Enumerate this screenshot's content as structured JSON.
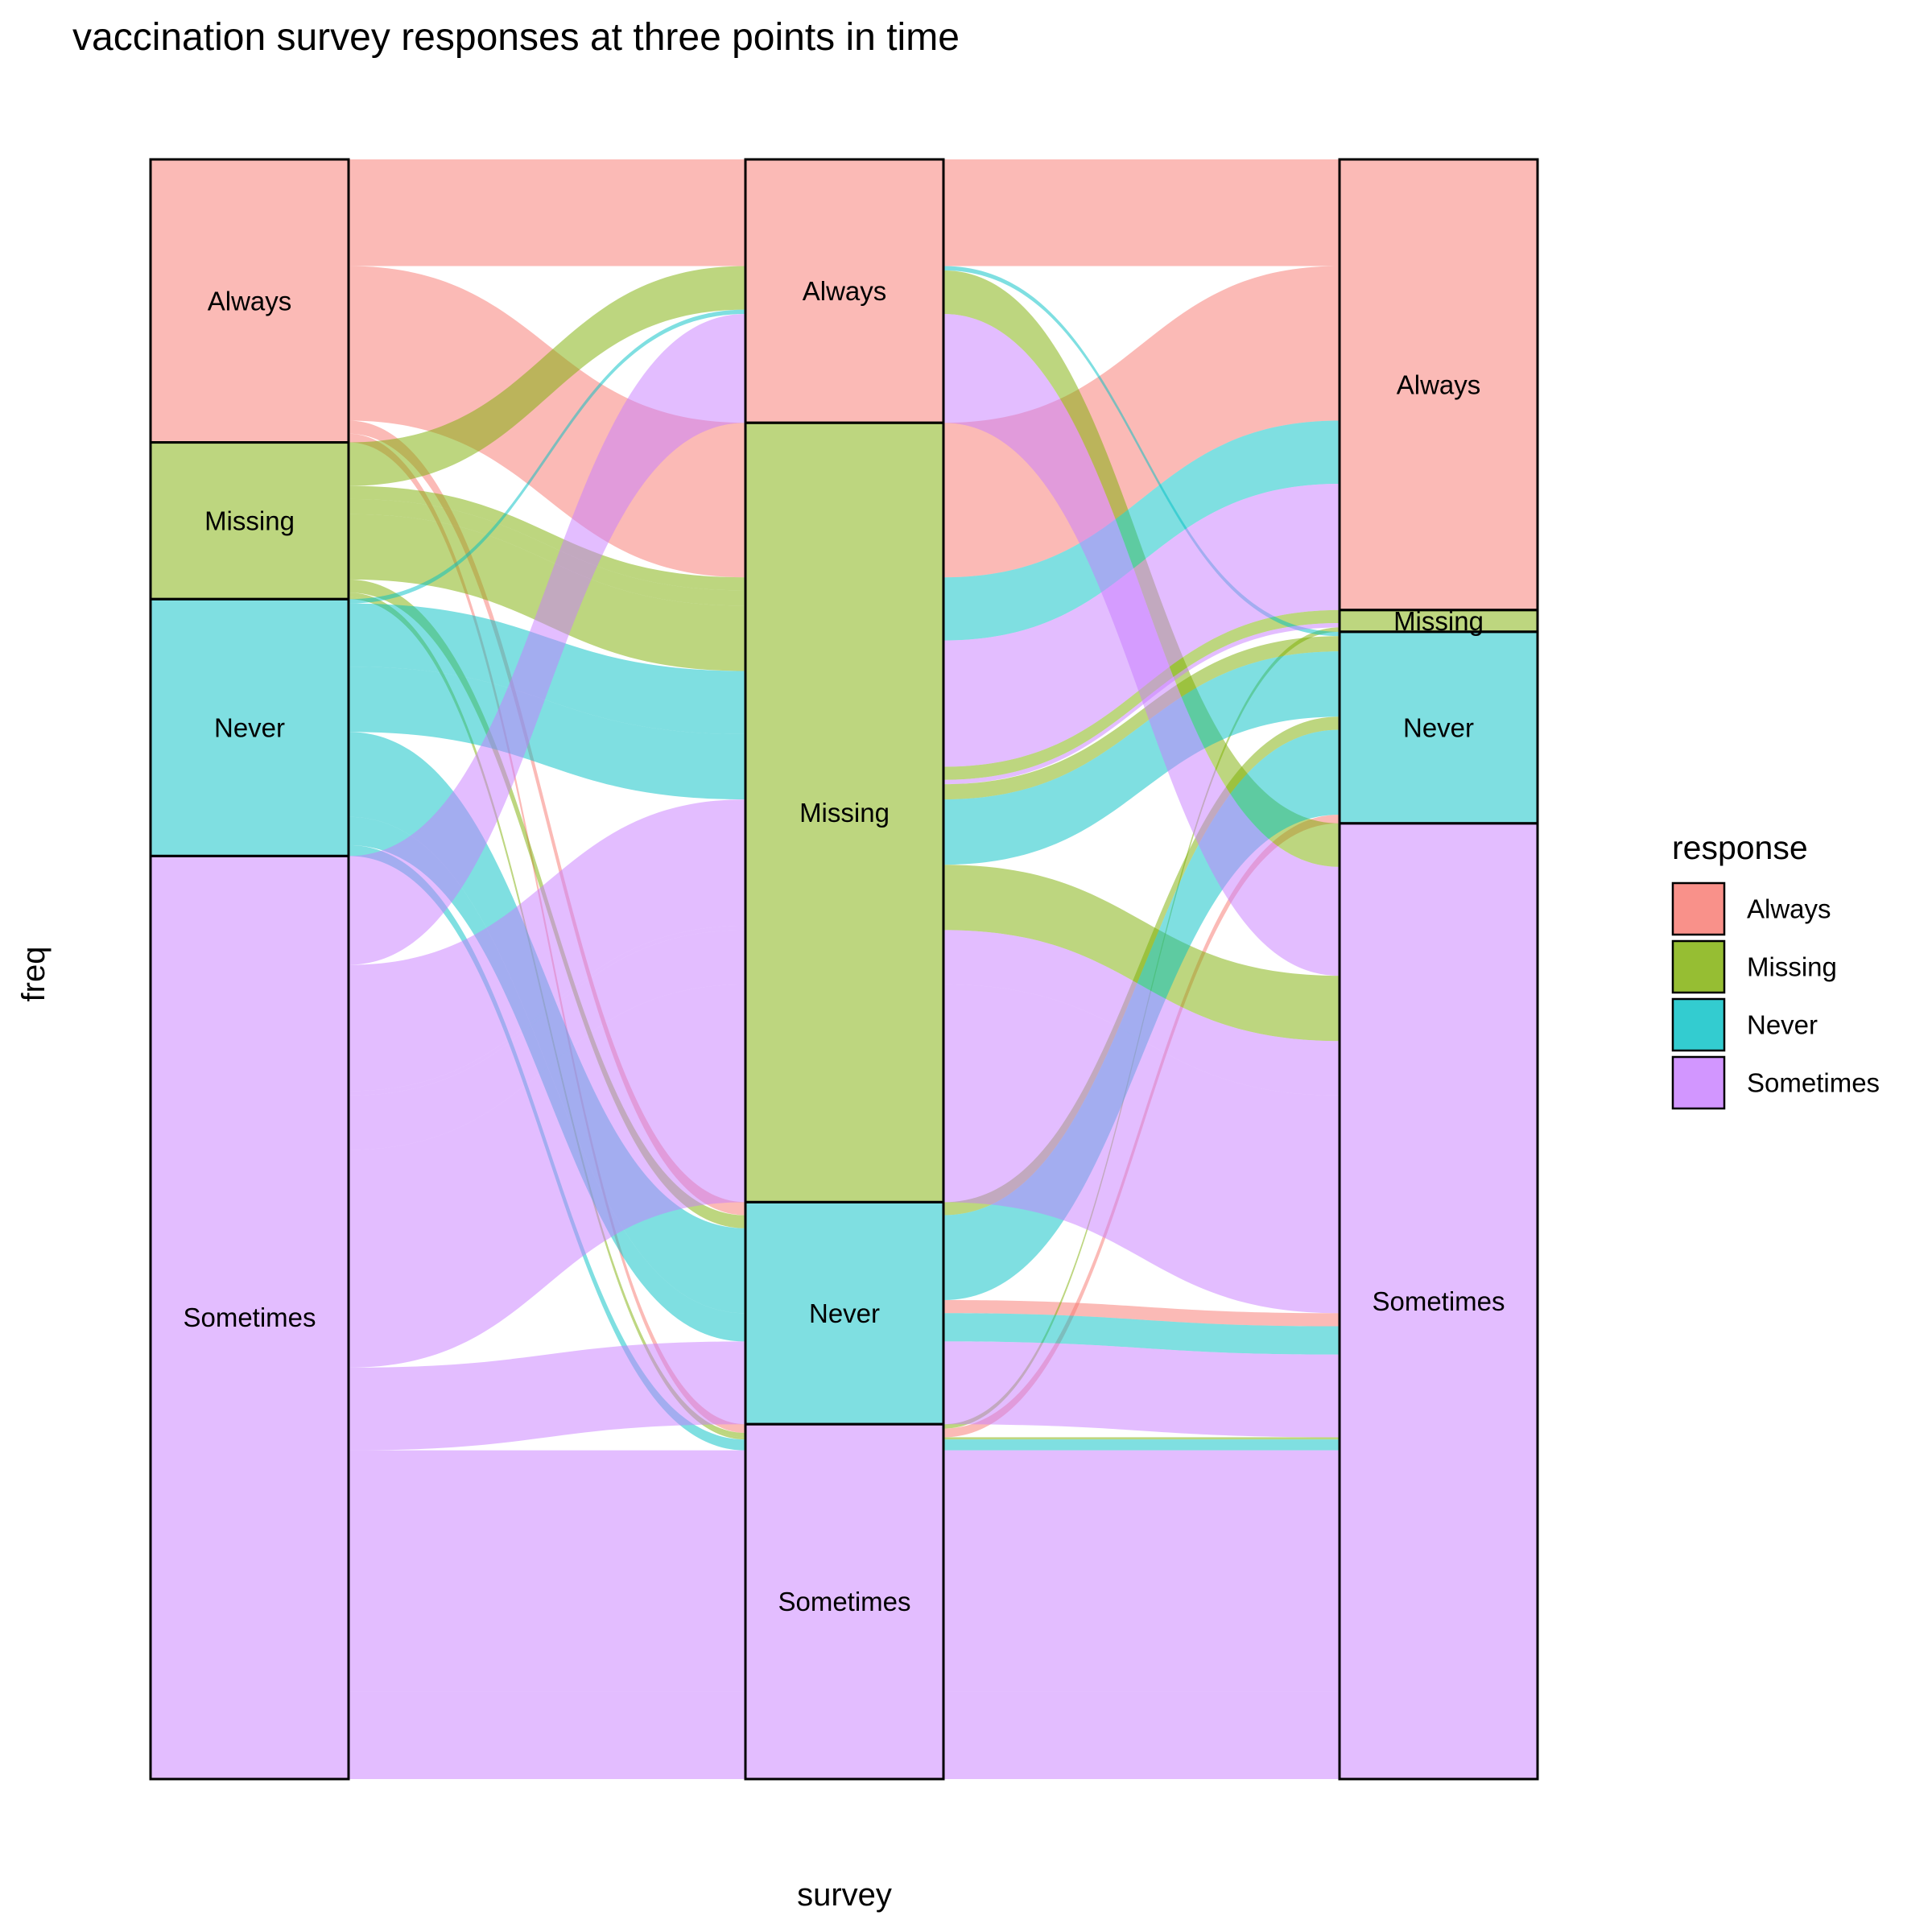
{
  "chart_data": {
    "type": "alluvial",
    "title": "vaccination survey responses at three points in time",
    "xlabel": "survey",
    "ylabel": "freq",
    "legend": {
      "title": "response",
      "position": "right"
    },
    "categories": [
      "Always",
      "Missing",
      "Never",
      "Sometimes"
    ],
    "colors": {
      "Always": "#F8766D",
      "Missing": "#7CAE00",
      "Never": "#00BFC4",
      "Sometimes": "#C77CFF"
    },
    "stratum_order": [
      "Always",
      "Missing",
      "Never",
      "Sometimes"
    ],
    "axes": [
      {
        "strata": [
          {
            "name": "Always",
            "label": "Always"
          },
          {
            "name": "Missing",
            "label": "Missing"
          },
          {
            "name": "Never",
            "label": "Never"
          },
          {
            "name": "Sometimes",
            "label": "Sometimes"
          }
        ]
      },
      {
        "strata": [
          {
            "name": "Always",
            "label": "Always"
          },
          {
            "name": "Missing",
            "label": "Missing"
          },
          {
            "name": "Never",
            "label": "Never"
          },
          {
            "name": "Sometimes",
            "label": "Sometimes"
          }
        ]
      },
      {
        "strata": [
          {
            "name": "Always",
            "label": "Always"
          },
          {
            "name": "Missing",
            "label": "Missing"
          },
          {
            "name": "Never",
            "label": "Never"
          },
          {
            "name": "Sometimes",
            "label": "Sometimes"
          }
        ]
      }
    ],
    "flows": [
      {
        "path": [
          "Always",
          "Always",
          "Always"
        ],
        "freq": 49
      },
      {
        "path": [
          "Always",
          "Missing",
          "Always"
        ],
        "freq": 71
      },
      {
        "path": [
          "Always",
          "Never",
          "Sometimes"
        ],
        "freq": 6
      },
      {
        "path": [
          "Always",
          "Sometimes",
          "Never"
        ],
        "freq": 4
      },
      {
        "path": [
          "Missing",
          "Always",
          "Sometimes"
        ],
        "freq": 20
      },
      {
        "path": [
          "Missing",
          "Missing",
          "Missing"
        ],
        "freq": 6
      },
      {
        "path": [
          "Missing",
          "Missing",
          "Never"
        ],
        "freq": 7
      },
      {
        "path": [
          "Missing",
          "Missing",
          "Sometimes"
        ],
        "freq": 30
      },
      {
        "path": [
          "Missing",
          "Never",
          "Never"
        ],
        "freq": 6
      },
      {
        "path": [
          "Missing",
          "Sometimes",
          "Missing"
        ],
        "freq": 2
      },
      {
        "path": [
          "Missing",
          "Sometimes",
          "Sometimes"
        ],
        "freq": 1
      },
      {
        "path": [
          "Never",
          "Always",
          "Never"
        ],
        "freq": 2
      },
      {
        "path": [
          "Never",
          "Missing",
          "Always"
        ],
        "freq": 29
      },
      {
        "path": [
          "Never",
          "Missing",
          "Never"
        ],
        "freq": 30
      },
      {
        "path": [
          "Never",
          "Never",
          "Never"
        ],
        "freq": 39
      },
      {
        "path": [
          "Never",
          "Never",
          "Sometimes"
        ],
        "freq": 13
      },
      {
        "path": [
          "Never",
          "Sometimes",
          "Sometimes"
        ],
        "freq": 5
      },
      {
        "path": [
          "Sometimes",
          "Always",
          "Sometimes"
        ],
        "freq": 50
      },
      {
        "path": [
          "Sometimes",
          "Missing",
          "Always"
        ],
        "freq": 58
      },
      {
        "path": [
          "Sometimes",
          "Missing",
          "Missing"
        ],
        "freq": 2
      },
      {
        "path": [
          "Sometimes",
          "Missing",
          "Sometimes"
        ],
        "freq": 25
      },
      {
        "path": [
          "Sometimes",
          "Missing",
          "Sometimes"
        ],
        "freq": 100
      },
      {
        "path": [
          "Sometimes",
          "Never",
          "Sometimes"
        ],
        "freq": 38
      },
      {
        "path": [
          "Sometimes",
          "Sometimes",
          "Sometimes"
        ],
        "freq": 111
      },
      {
        "path": [
          "Sometimes",
          "Sometimes",
          "Sometimes"
        ],
        "freq": 40
      }
    ]
  }
}
